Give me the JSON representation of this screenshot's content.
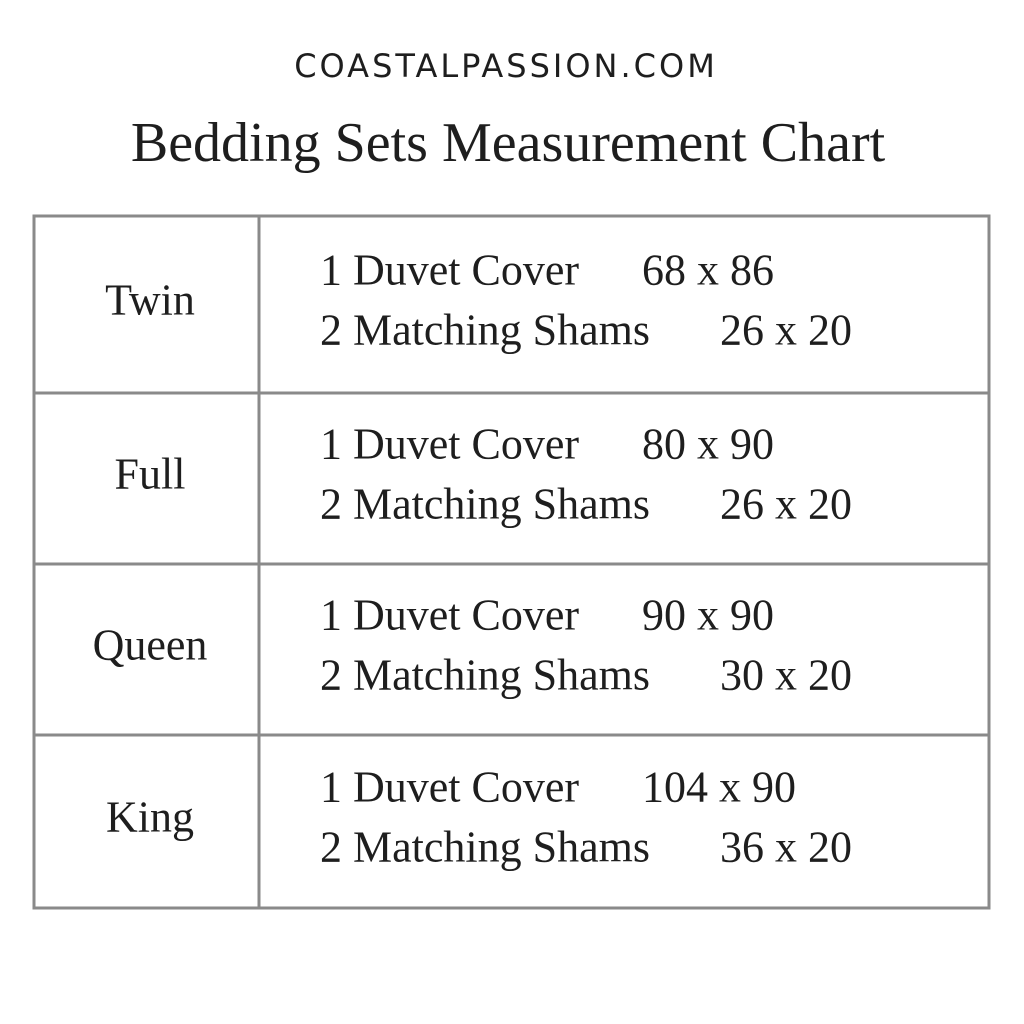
{
  "header": {
    "site": "COASTALPASSION.COM",
    "title": "Bedding Sets Measurement Chart"
  },
  "table": {
    "rows": [
      {
        "size": "Twin",
        "items": [
          {
            "label": "1 Duvet Cover",
            "dims": "68 x 86"
          },
          {
            "label": "2 Matching Shams",
            "dims": "26 x 20"
          }
        ]
      },
      {
        "size": "Full",
        "items": [
          {
            "label": "1 Duvet Cover",
            "dims": "80 x 90"
          },
          {
            "label": "2 Matching Shams",
            "dims": "26 x 20"
          }
        ]
      },
      {
        "size": "Queen",
        "items": [
          {
            "label": "1 Duvet Cover",
            "dims": "90 x 90"
          },
          {
            "label": "2 Matching Shams",
            "dims": "30 x 20"
          }
        ]
      },
      {
        "size": "King",
        "items": [
          {
            "label": "1 Duvet Cover",
            "dims": "104 x 90"
          },
          {
            "label": "2 Matching Shams",
            "dims": "36 x 20"
          }
        ]
      }
    ]
  }
}
